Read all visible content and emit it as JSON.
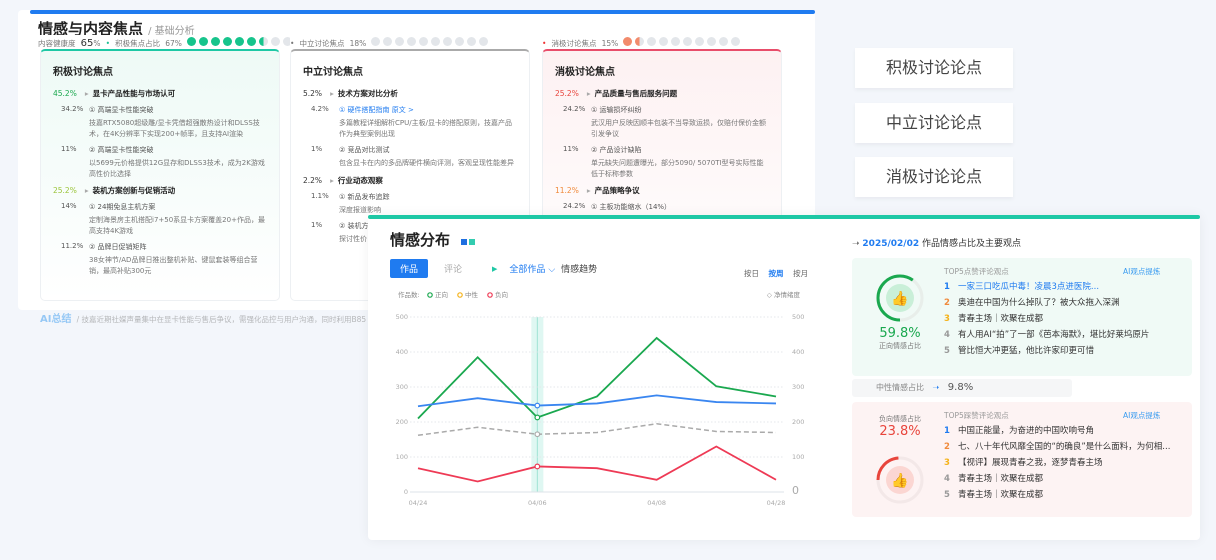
{
  "back": {
    "title": "情感与内容焦点",
    "subtitle": "/ 基础分析",
    "health_label": "内容健康度",
    "health_value": "65",
    "health_unit": "%",
    "pos_ratio_label": "积极焦点占比",
    "pos_ratio": "67%",
    "pos_dots": 6.5,
    "neu_label": "中立讨论焦点",
    "neu_ratio": "18%",
    "neg_label": "消极讨论焦点",
    "neg_ratio": "15%",
    "ai_label": "AI总结",
    "ai_text": "/  技嘉近期社媒声量集中在显卡性能与售后争议，需强化品控与用户沟通，同时利用B85",
    "cards": [
      {
        "title": "积极讨论焦点",
        "groups": [
          {
            "pct": "45.2%",
            "title": "显卡产品性能与市场认可",
            "items": [
              {
                "pct": "34.2%",
                "title": "① 高端显卡性能突破",
                "desc": "技嘉RTX5080超级雕/显卡凭借超强散热设计和DLSS技术，在4K分辨率下实现200+帧率，且支持AI渲染"
              },
              {
                "pct": "11%",
                "title": "② 高端显卡性能突破",
                "desc": "以5699元价格提供12G显存和DLSS3技术，成为2K游戏高性价比选择"
              }
            ]
          },
          {
            "pct": "25.2%",
            "title": "装机方案创新与促销活动",
            "items": [
              {
                "pct": "14%",
                "title": "① 24期免息主机方案",
                "desc": "定制海景房主机搭配i7+50系显卡方案覆盖20+作品，最高支持4K游戏"
              },
              {
                "pct": "11.2%",
                "title": "② 品牌日促销矩阵",
                "desc": "38女神节/AD品牌日推出整机补贴、键鼠套装等组合营销，最高补贴300元"
              }
            ]
          }
        ]
      },
      {
        "title": "中立讨论焦点",
        "groups": [
          {
            "pct": "5.2%",
            "title": "技术方案对比分析",
            "items": [
              {
                "pct": "4.2%",
                "title": "① 硬件搭配指南",
                "link": "原文 >",
                "desc": "多篇教程详细解析CPU/主板/显卡的搭配原则，技嘉产品作为典型案例出现"
              },
              {
                "pct": "1%",
                "title": "② 竞品对比测试",
                "desc": "包含显卡在内的多品牌硬件横向评测，客观呈现性能差异"
              }
            ]
          },
          {
            "pct": "2.2%",
            "title": "行业动态观察",
            "items": [
              {
                "pct": "1.1%",
                "title": "① 新品发布追踪",
                "desc": "深度报道影响"
              },
              {
                "pct": "1%",
                "title": "② 装机方",
                "desc": "探讨性价"
              }
            ]
          }
        ]
      },
      {
        "title": "消极讨论焦点",
        "groups": [
          {
            "pct": "25.2%",
            "title": "产品质量与售后服务问题",
            "items": [
              {
                "pct": "24.2%",
                "title": "① 运输损坏纠纷",
                "desc": "武汉用户反映因顺丰包装不当导致运损，仅赔付保价金额引发争议"
              },
              {
                "pct": "11%",
                "title": "② 产品设计缺陷",
                "desc": "单元缺失问题遭曝光，部分5090/ 5070TI型号实际性能低于标称参数"
              }
            ]
          },
          {
            "pct": "11.2%",
            "title": "产品策略争议",
            "items": [
              {
                "pct": "24.2%",
                "title": "① 主板功能缩水（14%）",
                "desc": ""
              }
            ]
          }
        ]
      }
    ]
  },
  "side_buttons": [
    "积极讨论论点",
    "中立讨论论点",
    "消极讨论论点"
  ],
  "front": {
    "title": "情感分布",
    "tabs": [
      "作品",
      "评论"
    ],
    "active_tab": "作品",
    "filter": "全部作品",
    "trend_label": "情感趋势",
    "granularity": [
      "按日",
      "按周",
      "按月"
    ],
    "active_granularity": "按周",
    "legend_prefix": "作品数:",
    "right_legend": "净情绪度"
  },
  "chart_data": {
    "type": "line",
    "x": [
      "04/24",
      "",
      "04/06",
      "",
      "04/08",
      "",
      "04/28"
    ],
    "x_tick_labels": [
      "04/24",
      "04/06",
      "04/08",
      "04/28"
    ],
    "ylim": [
      0,
      500
    ],
    "yticks": [
      0,
      100,
      200,
      300,
      400,
      500
    ],
    "y2lim": [
      0,
      500
    ],
    "y2ticks": [
      "0",
      "100",
      "200",
      "300",
      "400",
      "500"
    ],
    "grid": true,
    "highlight_x": "04/06",
    "series": [
      {
        "name": "正向",
        "color": "#1aa84f",
        "values": [
          210,
          385,
          213,
          273,
          440,
          302,
          273
        ]
      },
      {
        "name": "中性",
        "color": "#f5b31b",
        "values": [
          245,
          268,
          247,
          253,
          276,
          257,
          253
        ],
        "draw_color": "#3a86f0"
      },
      {
        "name": "负向",
        "color": "#ee3a55",
        "values": [
          68,
          30,
          73,
          68,
          35,
          130,
          35
        ]
      },
      {
        "name": "净情绪度",
        "color": "#aaaaaa",
        "dashed": true,
        "values": [
          162,
          185,
          165,
          170,
          195,
          173,
          170
        ]
      }
    ]
  },
  "right": {
    "date": "2025/02/02",
    "heading": "作品情感占比及主要观点",
    "positive": {
      "pct": "59.8%",
      "fraction": 0.598,
      "label": "正向情感占比",
      "list_title": "TOP5点赞评论观点",
      "ai": "AI观点提炼",
      "items": [
        "一家三口吃瓜中毒！凌晨3点进医院...",
        "奥迪在中国为什么掉队了？被大众拖入深渊",
        "青春主场｜欢聚在成都",
        "有人用AI“拍”了一部《芭本海默》，堪比好莱坞原片",
        "管比恒大冲更猛，他比许家印更可惜"
      ]
    },
    "neutral": {
      "label": "中性情感占比",
      "pct": "9.8%"
    },
    "negative": {
      "pct": "23.8%",
      "fraction": 0.238,
      "label": "负向情感占比",
      "list_title": "TOP5踩赞评论观点",
      "ai": "AI观点提炼",
      "items": [
        "中国正能量，为奋进的中国吹响号角",
        "七、八十年代风靡全国的“的确良”是什么面料，为何相...",
        "【视评】展现青春之我，逐梦青春主场",
        "青春主场｜欢聚在成都",
        "青春主场｜欢聚在成都"
      ]
    },
    "rank_colors": [
      "#1f7bf0",
      "#f08a3c",
      "#f5b31b",
      "#999999",
      "#999999"
    ]
  }
}
